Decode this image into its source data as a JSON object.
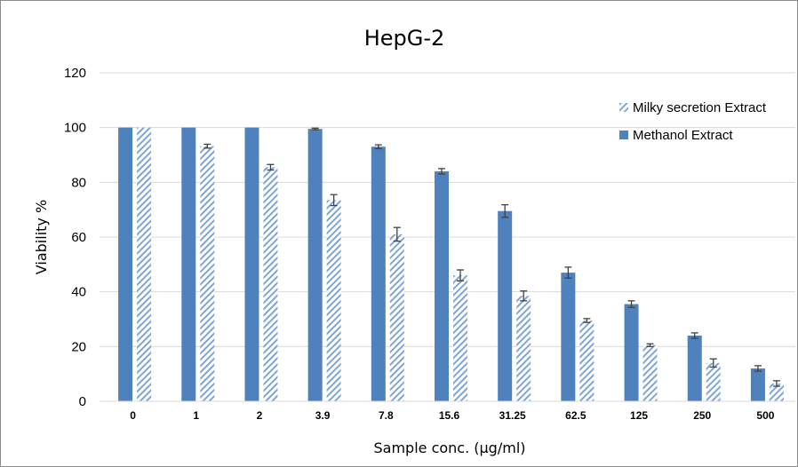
{
  "chart_data": {
    "type": "bar",
    "title": "HepG-2",
    "xlabel": "Sample conc. (µg/ml)",
    "ylabel": "Viability %",
    "ylim": [
      0,
      120
    ],
    "yticks": [
      0,
      20,
      40,
      60,
      80,
      100,
      120
    ],
    "grid": true,
    "legend_position": "right",
    "categories": [
      "0",
      "1",
      "2",
      "3.9",
      "7.8",
      "15.6",
      "31.25",
      "62.5",
      "125",
      "250",
      "500"
    ],
    "series": [
      {
        "name": "Methanol Extract",
        "style": "solid",
        "color": "#4f81bd",
        "values": [
          100,
          100,
          100,
          99.5,
          93,
          84,
          69.5,
          47,
          35.5,
          24,
          12
        ],
        "errors": [
          0,
          0,
          0,
          0.3,
          0.7,
          1.0,
          2.3,
          2.0,
          1.2,
          1.0,
          1.0
        ]
      },
      {
        "name": "Milky secretion Extract",
        "style": "hatched",
        "color": "#4f81bd",
        "values": [
          100,
          93.2,
          85.5,
          73.5,
          61,
          46,
          38.5,
          29.5,
          20.5,
          14,
          6.5
        ],
        "errors": [
          0,
          0.7,
          1.0,
          2.0,
          2.5,
          2.0,
          1.8,
          0.7,
          0.5,
          1.5,
          1.0
        ]
      }
    ],
    "legend_order": [
      "Milky secretion Extract",
      "Methanol Extract"
    ]
  }
}
